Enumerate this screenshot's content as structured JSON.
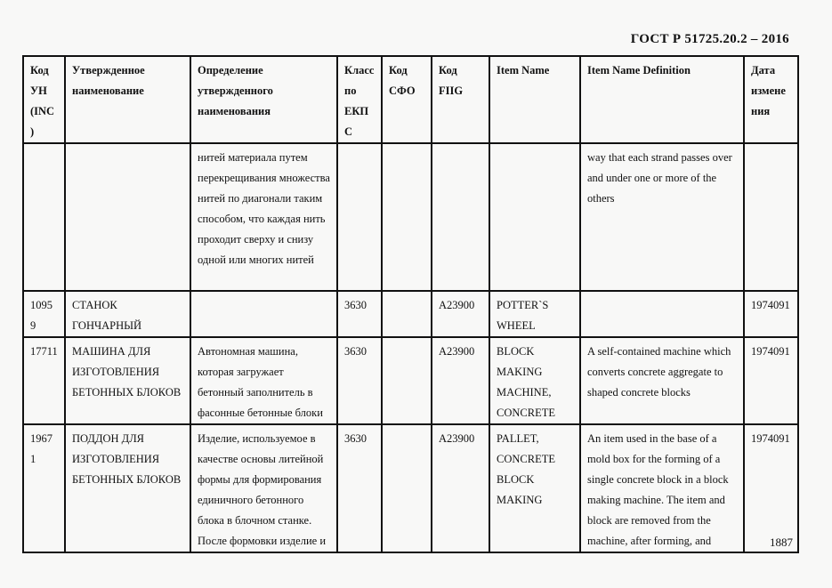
{
  "document": {
    "title": "ГОСТ Р 51725.20.2 – 2016",
    "page_number": "1887"
  },
  "table": {
    "headers": [
      "Код УН (INC)",
      "Утвержденное наименование",
      "Определение утвержденного наименования",
      "Класс по ЕКПС",
      "Код СФО",
      "Код FIIG",
      "Item Name",
      "Item Name Definition",
      "Дата изменения"
    ],
    "rows": [
      {
        "cells": [
          "",
          "",
          "нитей материала путем перекрещивания множества нитей по диагонали таким способом, что каждая нить проходит сверху и снизу одной или многих нитей",
          "",
          "",
          "",
          "",
          "way that each strand passes over and under one or more of the others",
          ""
        ]
      },
      {
        "cells": [
          "10959",
          "СТАНОК ГОНЧАРНЫЙ",
          "",
          "3630",
          "",
          "A23900",
          "POTTER`S WHEEL",
          "",
          "1974091"
        ]
      },
      {
        "cells": [
          "17711",
          "МАШИНА ДЛЯ ИЗГОТОВЛЕНИЯ БЕТОННЫХ БЛОКОВ",
          "Автономная машина, которая загружает бетонный заполнитель в фасонные бетонные блоки",
          "3630",
          "",
          "A23900",
          "BLOCK MAKING MACHINE, CONCRETE",
          "A self-contained machine which converts concrete aggregate to shaped concrete blocks",
          "1974091"
        ]
      },
      {
        "cells": [
          "19671",
          "ПОДДОН ДЛЯ ИЗГОТОВЛЕНИЯ БЕТОННЫХ БЛОКОВ",
          "Изделие, используемое в качестве основы литейной формы для формирования единичного бетонного блока в блочном станке. После формовки изделие и",
          "3630",
          "",
          "A23900",
          "PALLET, CONCRETE BLOCK MAKING",
          "An item used in the base of a mold box for the forming of a single concrete block in a block making machine. The item and block are removed from the machine, after forming, and",
          "1974091"
        ]
      }
    ]
  }
}
